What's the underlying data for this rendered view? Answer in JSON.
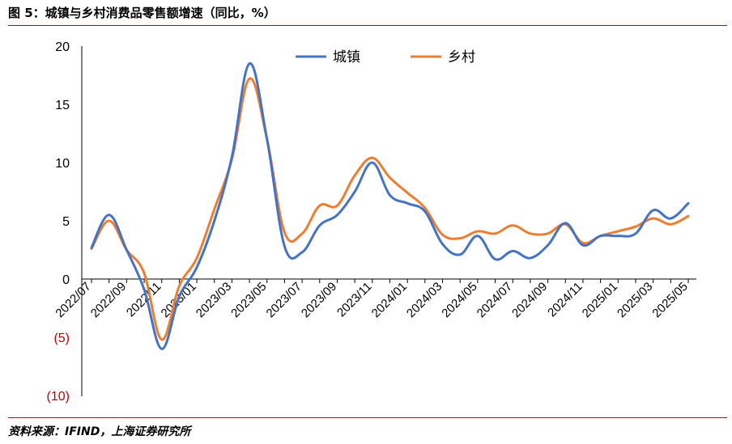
{
  "header": {
    "title": "图 5：城镇与乡村消费品零售额增速（同比，%）"
  },
  "footer": {
    "source": "资料来源：IFIND，上海证券研究所"
  },
  "colors": {
    "urban": "#4472c4",
    "rural": "#ed7d31",
    "rule": "#c00000",
    "negative_tick": "#c00000"
  },
  "chart_data": {
    "type": "line",
    "title": "",
    "xlabel": "",
    "ylabel": "",
    "ylim": [
      -10,
      20
    ],
    "yticks": [
      {
        "value": 20,
        "label": "20"
      },
      {
        "value": 15,
        "label": "15"
      },
      {
        "value": 10,
        "label": "10"
      },
      {
        "value": 5,
        "label": "5"
      },
      {
        "value": 0,
        "label": "0"
      },
      {
        "value": -5,
        "label": "(5)"
      },
      {
        "value": -10,
        "label": "(10)"
      }
    ],
    "grid": false,
    "legend": "top-center",
    "x": [
      "2022/07",
      "2022/08",
      "2022/09",
      "2022/10",
      "2022/11",
      "2022/12",
      "2023/01",
      "2023/02",
      "2023/03",
      "2023/04",
      "2023/05",
      "2023/06",
      "2023/07",
      "2023/08",
      "2023/09",
      "2023/10",
      "2023/11",
      "2023/12",
      "2024/01",
      "2024/02",
      "2024/03",
      "2024/04",
      "2024/05",
      "2024/06",
      "2024/07",
      "2024/08",
      "2024/09",
      "2024/10",
      "2024/11",
      "2024/12",
      "2025/01",
      "2025/02",
      "2025/03",
      "2025/04",
      "2025/05"
    ],
    "xtick_labels": [
      "2022/07",
      "2022/09",
      "2022/11",
      "2023/01",
      "2023/03",
      "2023/05",
      "2023/07",
      "2023/09",
      "2023/11",
      "2024/01",
      "2024/03",
      "2024/05",
      "2024/07",
      "2024/09",
      "2024/11",
      "2025/01",
      "2025/03",
      "2025/05"
    ],
    "series": [
      {
        "name": "城镇",
        "values": [
          2.7,
          5.5,
          2.5,
          -0.9,
          -6.0,
          -1.5,
          1.0,
          5.0,
          10.5,
          18.5,
          12.0,
          2.8,
          2.3,
          4.6,
          5.5,
          7.5,
          10.0,
          7.2,
          6.5,
          5.8,
          3.0,
          2.1,
          3.7,
          1.7,
          2.4,
          1.8,
          2.9,
          4.8,
          2.9,
          3.7,
          3.7,
          3.9,
          5.9,
          5.2,
          6.5
        ]
      },
      {
        "name": "乡村",
        "values": [
          2.6,
          5.0,
          2.5,
          0.5,
          -5.2,
          -0.6,
          1.8,
          6.0,
          10.3,
          17.2,
          12.0,
          4.0,
          3.9,
          6.3,
          6.3,
          8.9,
          10.4,
          8.7,
          7.4,
          6.1,
          3.8,
          3.5,
          4.1,
          3.9,
          4.6,
          3.9,
          3.9,
          4.7,
          3.1,
          3.7,
          4.1,
          4.5,
          5.2,
          4.7,
          5.4
        ]
      }
    ]
  }
}
